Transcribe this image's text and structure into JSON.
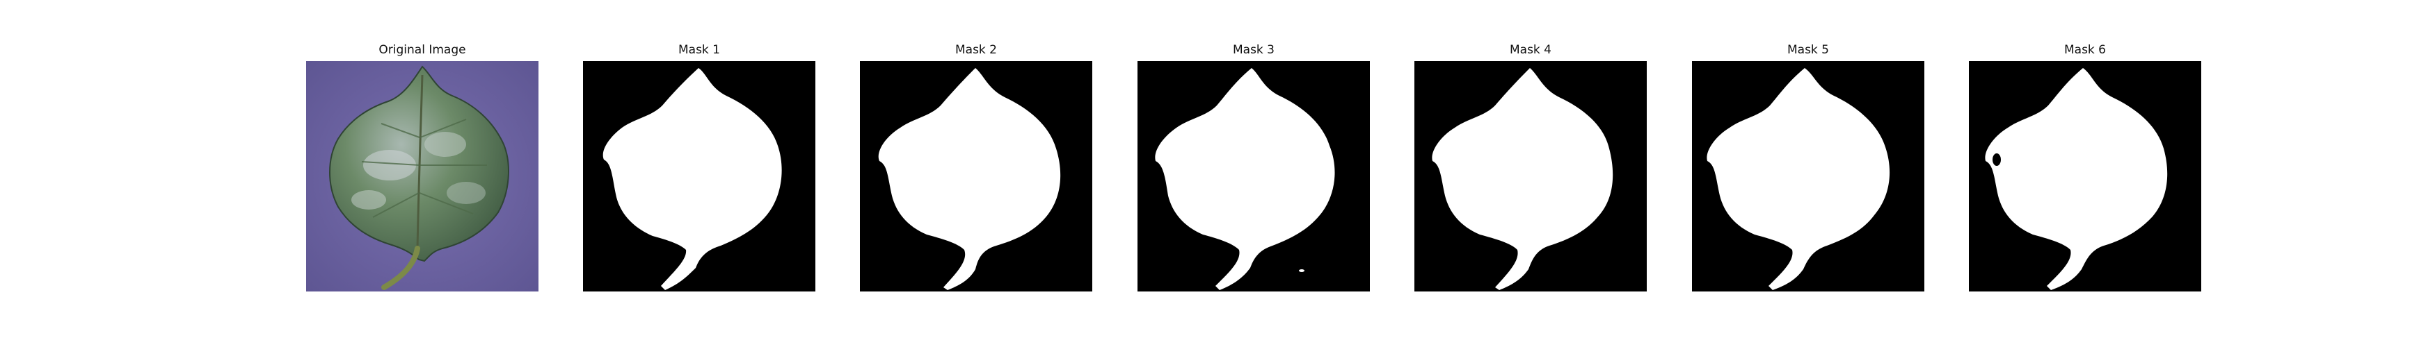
{
  "figure": {
    "panels": [
      {
        "title": "Original Image"
      },
      {
        "title": "Mask 1"
      },
      {
        "title": "Mask 2"
      },
      {
        "title": "Mask 3"
      },
      {
        "title": "Mask 4"
      },
      {
        "title": "Mask 5"
      },
      {
        "title": "Mask 6"
      }
    ]
  },
  "colors": {
    "mask_background": "#000000",
    "mask_foreground": "#ffffff",
    "photo_background": "#6f66a6",
    "leaf_green": "#5e7b5a",
    "leaf_highlight": "#b9c6bf"
  }
}
